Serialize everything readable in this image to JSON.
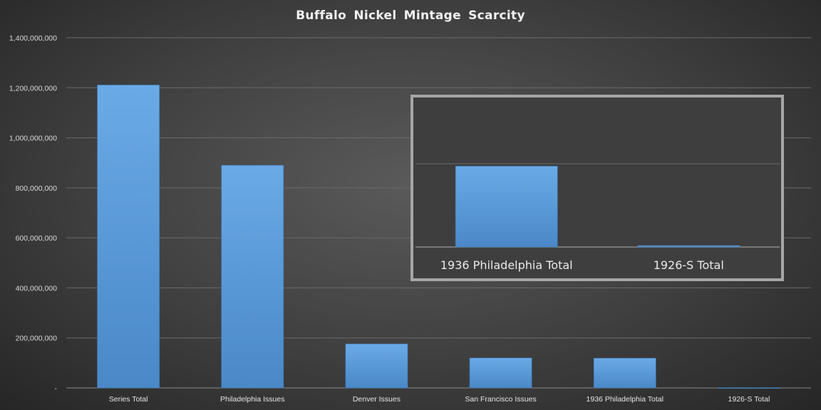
{
  "chart_data": {
    "type": "bar",
    "title": "Buffalo Nickel Mintage Scarcity",
    "xlabel": "",
    "ylabel": "",
    "ylim": [
      0,
      1400000000
    ],
    "yticks": [
      0,
      200000000,
      400000000,
      600000000,
      800000000,
      1000000000,
      1200000000,
      1400000000
    ],
    "ytick_labels": [
      "-",
      "200,000,000",
      "400,000,000",
      "600,000,000",
      "800,000,000",
      "1,000,000,000",
      "1,200,000,000",
      "1,400,000,000"
    ],
    "categories": [
      "Series Total",
      "Philadelphia Issues",
      "Denver Issues",
      "San Francisco Issues",
      "1936 Philadelphia Total",
      "1926-S Total"
    ],
    "values": [
      1211000000,
      890000000,
      176000000,
      120000000,
      119000000,
      970000
    ],
    "grid": true,
    "legend": "none",
    "bar_color": "#5b9bd5",
    "inset": {
      "categories": [
        "1936 Philadelphia Total",
        "1926-S Total"
      ],
      "values": [
        119000000,
        970000
      ],
      "ylim": [
        0,
        190000000
      ],
      "border_color": "#a6a6a6"
    }
  }
}
